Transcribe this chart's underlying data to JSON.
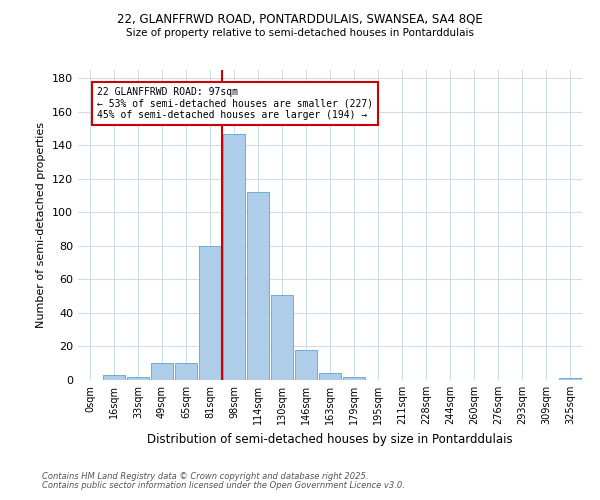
{
  "title1": "22, GLANFFRWD ROAD, PONTARDDULAIS, SWANSEA, SA4 8QE",
  "title2": "Size of property relative to semi-detached houses in Pontarddulais",
  "xlabel": "Distribution of semi-detached houses by size in Pontarddulais",
  "ylabel": "Number of semi-detached properties",
  "categories": [
    "0sqm",
    "16sqm",
    "33sqm",
    "49sqm",
    "65sqm",
    "81sqm",
    "98sqm",
    "114sqm",
    "130sqm",
    "146sqm",
    "163sqm",
    "179sqm",
    "195sqm",
    "211sqm",
    "228sqm",
    "244sqm",
    "260sqm",
    "276sqm",
    "293sqm",
    "309sqm",
    "325sqm"
  ],
  "values": [
    0,
    3,
    2,
    10,
    10,
    80,
    147,
    112,
    51,
    18,
    4,
    2,
    0,
    0,
    0,
    0,
    0,
    0,
    0,
    0,
    1
  ],
  "bar_color": "#aecde8",
  "bar_edge_color": "#6aaed6",
  "vline_color": "#cc0000",
  "annotation_text": "22 GLANFFRWD ROAD: 97sqm\n← 53% of semi-detached houses are smaller (227)\n45% of semi-detached houses are larger (194) →",
  "annotation_box_color": "#ffffff",
  "annotation_box_edge": "#cc0000",
  "footer1": "Contains HM Land Registry data © Crown copyright and database right 2025.",
  "footer2": "Contains public sector information licensed under the Open Government Licence v3.0.",
  "ylim": [
    0,
    185
  ],
  "yticks": [
    0,
    20,
    40,
    60,
    80,
    100,
    120,
    140,
    160,
    180
  ],
  "bg_color": "#ffffff",
  "grid_color": "#d0dce8"
}
